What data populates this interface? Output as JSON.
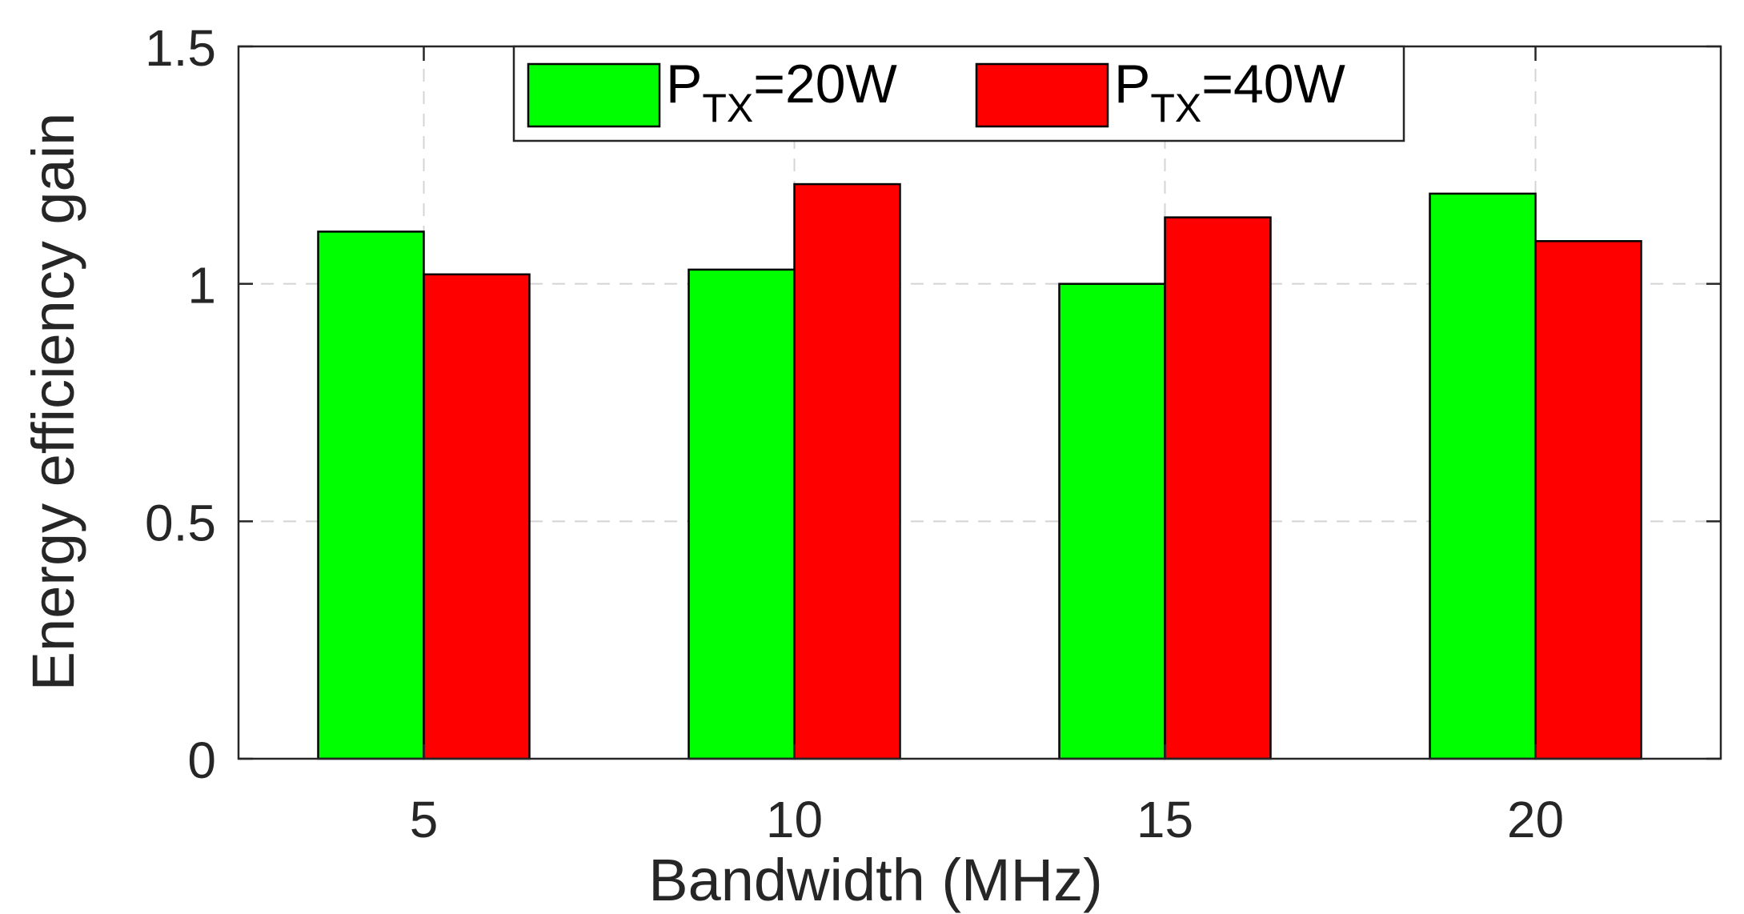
{
  "chart_data": {
    "type": "bar",
    "categories": [
      "5",
      "10",
      "15",
      "20"
    ],
    "series": [
      {
        "name_main": "P",
        "name_sub": "TX",
        "name_tail": "=20W",
        "color": "#00ff00",
        "values": [
          1.11,
          1.03,
          1.0,
          1.19
        ]
      },
      {
        "name_main": "P",
        "name_sub": "TX",
        "name_tail": "=40W",
        "color": "#ff0000",
        "values": [
          1.02,
          1.21,
          1.14,
          1.09
        ]
      }
    ],
    "title": "",
    "xlabel": "Bandwidth (MHz)",
    "ylabel": "Energy efficiency gain",
    "ylim": [
      0,
      1.5
    ],
    "yticks": [
      0,
      0.5,
      1,
      1.5
    ],
    "ytick_labels": [
      "0",
      "0.5",
      "1",
      "1.5"
    ],
    "grid": true,
    "legend_position": "top-center"
  }
}
